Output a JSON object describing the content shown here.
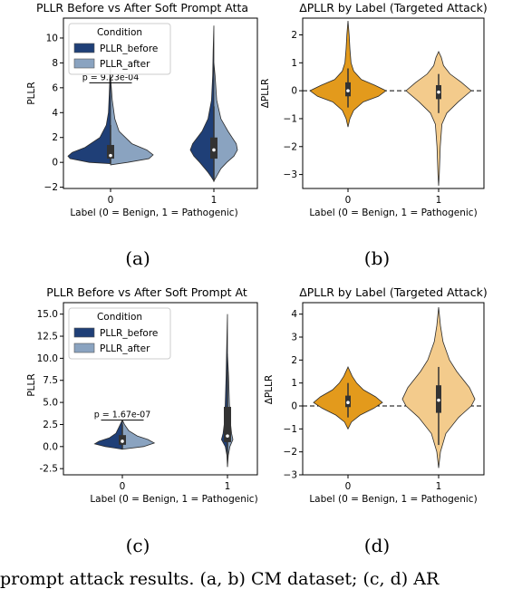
{
  "colors": {
    "before": "#1f3f77",
    "after": "#8aa3c0",
    "benign_delta": "#e39a1c",
    "patho_delta": "#f3cb8c",
    "box": "#333333"
  },
  "caption": "prompt attack results. (a, b) CM dataset; (c, d) AR",
  "chart_data": [
    {
      "id": "a",
      "panel_label": "(a)",
      "type": "violin",
      "title": "PLLR Before vs After Soft Prompt Atta",
      "xlabel": "Label (0 = Benign, 1 = Pathogenic)",
      "ylabel": "PLLR",
      "categories": [
        "0",
        "1"
      ],
      "ylim": [
        -2.1,
        11.6
      ],
      "yticks": [
        -2,
        0,
        2,
        4,
        6,
        8,
        10
      ],
      "legend": {
        "title": "Condition",
        "entries": [
          "PLLR_before",
          "PLLR_after"
        ],
        "placement": "upper-left"
      },
      "annotation": {
        "text": "p = 9.23e-04",
        "y": 6.4
      },
      "series": [
        {
          "name": "PLLR_before",
          "color_key": "before",
          "violins": [
            {
              "category": "0",
              "profile": [
                [
                  -0.1,
                  0.0
                ],
                [
                  0.0,
                  0.5
                ],
                [
                  0.3,
                  0.95
                ],
                [
                  0.5,
                  1.0
                ],
                [
                  0.8,
                  0.9
                ],
                [
                  1.2,
                  0.6
                ],
                [
                  2.0,
                  0.25
                ],
                [
                  3.0,
                  0.1
                ],
                [
                  4.0,
                  0.05
                ],
                [
                  5.5,
                  0.03
                ],
                [
                  7.0,
                  0.015
                ],
                [
                  8.0,
                  0.0
                ]
              ],
              "box": [
                0.3,
                1.4
              ],
              "whisker": [
                -0.1,
                3.0
              ],
              "median": 0.55
            },
            {
              "category": "1",
              "profile": [
                [
                  -1.5,
                  0.0
                ],
                [
                  -1.2,
                  0.1
                ],
                [
                  -0.8,
                  0.25
                ],
                [
                  0.0,
                  0.6
                ],
                [
                  0.5,
                  0.85
                ],
                [
                  1.0,
                  1.0
                ],
                [
                  1.5,
                  0.9
                ],
                [
                  2.5,
                  0.5
                ],
                [
                  3.5,
                  0.25
                ],
                [
                  5.0,
                  0.1
                ],
                [
                  7.0,
                  0.05
                ],
                [
                  9.0,
                  0.03
                ],
                [
                  11.0,
                  0.0
                ]
              ],
              "box": [
                0.3,
                2.0
              ],
              "whisker": [
                -1.5,
                4.5
              ],
              "median": 1.0
            }
          ]
        },
        {
          "name": "PLLR_after",
          "color_key": "after",
          "violins": [
            {
              "category": "0",
              "profile": [
                [
                  -0.2,
                  0.0
                ],
                [
                  0.0,
                  0.4
                ],
                [
                  0.3,
                  0.9
                ],
                [
                  0.6,
                  1.0
                ],
                [
                  1.0,
                  0.85
                ],
                [
                  1.5,
                  0.5
                ],
                [
                  2.5,
                  0.2
                ],
                [
                  3.5,
                  0.1
                ],
                [
                  5.0,
                  0.04
                ],
                [
                  6.8,
                  0.0
                ]
              ],
              "box": [
                0.3,
                1.4
              ],
              "whisker": [
                -0.2,
                3.0
              ],
              "median": 0.6
            },
            {
              "category": "1",
              "profile": [
                [
                  -1.5,
                  0.0
                ],
                [
                  -1.0,
                  0.15
                ],
                [
                  -0.5,
                  0.3
                ],
                [
                  0.0,
                  0.55
                ],
                [
                  0.5,
                  0.85
                ],
                [
                  1.0,
                  1.0
                ],
                [
                  1.5,
                  0.95
                ],
                [
                  2.5,
                  0.6
                ],
                [
                  3.5,
                  0.3
                ],
                [
                  5.0,
                  0.12
                ],
                [
                  7.0,
                  0.05
                ],
                [
                  8.0,
                  0.0
                ]
              ],
              "box": [
                0.3,
                2.0
              ],
              "whisker": [
                -1.5,
                4.5
              ],
              "median": 1.0
            }
          ]
        }
      ]
    },
    {
      "id": "b",
      "panel_label": "(b)",
      "type": "violin",
      "title": "ΔPLLR by Label (Targeted Attack)",
      "xlabel": "Label (0 = Benign, 1 = Pathogenic)",
      "ylabel": "ΔPLLR",
      "categories": [
        "0",
        "1"
      ],
      "ylim": [
        -3.5,
        2.6
      ],
      "yticks": [
        -3,
        -2,
        -1,
        0,
        1,
        2
      ],
      "reference_line": 0,
      "series": [
        {
          "name": "",
          "violins": [
            {
              "category": "0",
              "color_key": "benign_delta",
              "profile": [
                [
                  -1.3,
                  0.0
                ],
                [
                  -1.0,
                  0.05
                ],
                [
                  -0.7,
                  0.15
                ],
                [
                  -0.4,
                  0.4
                ],
                [
                  -0.2,
                  0.8
                ],
                [
                  0.0,
                  1.0
                ],
                [
                  0.2,
                  0.7
                ],
                [
                  0.4,
                  0.35
                ],
                [
                  0.7,
                  0.15
                ],
                [
                  1.0,
                  0.08
                ],
                [
                  1.5,
                  0.05
                ],
                [
                  2.0,
                  0.03
                ],
                [
                  2.5,
                  0.0
                ]
              ],
              "box": [
                -0.2,
                0.3
              ],
              "whisker": [
                -0.6,
                0.8
              ],
              "median": 0.0
            },
            {
              "category": "1",
              "color_key": "patho_delta",
              "profile": [
                [
                  -3.4,
                  0.0
                ],
                [
                  -3.0,
                  0.02
                ],
                [
                  -2.0,
                  0.05
                ],
                [
                  -1.2,
                  0.1
                ],
                [
                  -0.8,
                  0.25
                ],
                [
                  -0.4,
                  0.6
                ],
                [
                  0.0,
                  1.0
                ],
                [
                  0.3,
                  0.7
                ],
                [
                  0.6,
                  0.35
                ],
                [
                  0.9,
                  0.15
                ],
                [
                  1.2,
                  0.08
                ],
                [
                  1.4,
                  0.0
                ]
              ],
              "box": [
                -0.3,
                0.2
              ],
              "whisker": [
                -0.8,
                0.6
              ],
              "median": -0.05
            }
          ]
        }
      ]
    },
    {
      "id": "c",
      "panel_label": "(c)",
      "type": "violin",
      "title": "PLLR Before vs After Soft Prompt At",
      "xlabel": "Label (0 = Benign, 1 = Pathogenic)",
      "ylabel": "PLLR",
      "categories": [
        "0",
        "1"
      ],
      "ylim": [
        -3.2,
        16.3
      ],
      "yticks": [
        -2.5,
        0.0,
        2.5,
        5.0,
        7.5,
        10.0,
        12.5,
        15.0
      ],
      "legend": {
        "title": "Condition",
        "entries": [
          "PLLR_before",
          "PLLR_after"
        ],
        "placement": "upper-left"
      },
      "annotation": {
        "text": "p = 1.67e-07",
        "y": 3.0
      },
      "series": [
        {
          "name": "PLLR_before",
          "color_key": "before",
          "violins": [
            {
              "category": "0",
              "profile": [
                [
                  -0.3,
                  0.0
                ],
                [
                  0.0,
                  0.4
                ],
                [
                  0.3,
                  0.65
                ],
                [
                  0.6,
                  0.55
                ],
                [
                  1.0,
                  0.3
                ],
                [
                  1.5,
                  0.15
                ],
                [
                  2.2,
                  0.08
                ],
                [
                  3.0,
                  0.0
                ]
              ],
              "box": [
                0.2,
                1.3
              ],
              "whisker": [
                -0.2,
                2.5
              ],
              "median": 0.6
            },
            {
              "category": "1",
              "profile": [
                [
                  -2.3,
                  0.0
                ],
                [
                  -1.0,
                  0.02
                ],
                [
                  0.0,
                  0.08
                ],
                [
                  0.8,
                  0.22
                ],
                [
                  1.5,
                  0.16
                ],
                [
                  3.0,
                  0.1
                ],
                [
                  5.0,
                  0.08
                ],
                [
                  8.0,
                  0.05
                ],
                [
                  11.0,
                  0.03
                ],
                [
                  13.0,
                  0.015
                ],
                [
                  15.0,
                  0.0
                ]
              ],
              "box": [
                0.5,
                4.5
              ],
              "whisker": [
                -1.0,
                8.5
              ],
              "median": 1.2
            }
          ]
        },
        {
          "name": "PLLR_after",
          "color_key": "after",
          "violins": [
            {
              "category": "0",
              "profile": [
                [
                  -0.3,
                  0.0
                ],
                [
                  0.0,
                  0.5
                ],
                [
                  0.4,
                  0.75
                ],
                [
                  0.8,
                  0.6
                ],
                [
                  1.2,
                  0.35
                ],
                [
                  1.8,
                  0.15
                ],
                [
                  2.5,
                  0.05
                ],
                [
                  3.0,
                  0.0
                ]
              ],
              "box": [
                0.2,
                1.3
              ],
              "whisker": [
                -0.2,
                2.5
              ],
              "median": 0.6
            },
            {
              "category": "1",
              "profile": [
                [
                  -2.3,
                  0.0
                ],
                [
                  -1.0,
                  0.03
                ],
                [
                  0.0,
                  0.09
                ],
                [
                  0.8,
                  0.2
                ],
                [
                  1.5,
                  0.15
                ],
                [
                  3.0,
                  0.1
                ],
                [
                  5.0,
                  0.07
                ],
                [
                  8.0,
                  0.04
                ],
                [
                  10.5,
                  0.0
                ]
              ],
              "box": [
                0.5,
                4.5
              ],
              "whisker": [
                -1.0,
                8.5
              ],
              "median": 1.2
            }
          ]
        }
      ]
    },
    {
      "id": "d",
      "panel_label": "(d)",
      "type": "violin",
      "title": "ΔPLLR by Label (Targeted Attack)",
      "xlabel": "Label (0 = Benign, 1 = Pathogenic)",
      "ylabel": "ΔPLLR",
      "categories": [
        "0",
        "1"
      ],
      "ylim": [
        -3.0,
        4.5
      ],
      "yticks": [
        -3,
        -2,
        -1,
        0,
        1,
        2,
        3,
        4
      ],
      "reference_line": 0,
      "series": [
        {
          "name": "",
          "violins": [
            {
              "category": "0",
              "color_key": "benign_delta",
              "profile": [
                [
                  -1.0,
                  0.0
                ],
                [
                  -0.7,
                  0.1
                ],
                [
                  -0.4,
                  0.35
                ],
                [
                  -0.1,
                  0.75
                ],
                [
                  0.15,
                  1.0
                ],
                [
                  0.4,
                  0.8
                ],
                [
                  0.7,
                  0.45
                ],
                [
                  1.0,
                  0.25
                ],
                [
                  1.3,
                  0.12
                ],
                [
                  1.7,
                  0.0
                ]
              ],
              "box": [
                -0.05,
                0.45
              ],
              "whisker": [
                -0.5,
                1.0
              ],
              "median": 0.15
            },
            {
              "category": "1",
              "color_key": "patho_delta",
              "profile": [
                [
                  -2.7,
                  0.0
                ],
                [
                  -2.0,
                  0.05
                ],
                [
                  -1.2,
                  0.2
                ],
                [
                  -0.5,
                  0.55
                ],
                [
                  0.0,
                  0.9
                ],
                [
                  0.3,
                  1.0
                ],
                [
                  0.8,
                  0.85
                ],
                [
                  1.5,
                  0.5
                ],
                [
                  2.0,
                  0.3
                ],
                [
                  2.8,
                  0.12
                ],
                [
                  3.5,
                  0.05
                ],
                [
                  4.3,
                  0.0
                ]
              ],
              "box": [
                -0.3,
                0.9
              ],
              "whisker": [
                -1.7,
                1.7
              ],
              "median": 0.25
            }
          ]
        }
      ]
    }
  ]
}
